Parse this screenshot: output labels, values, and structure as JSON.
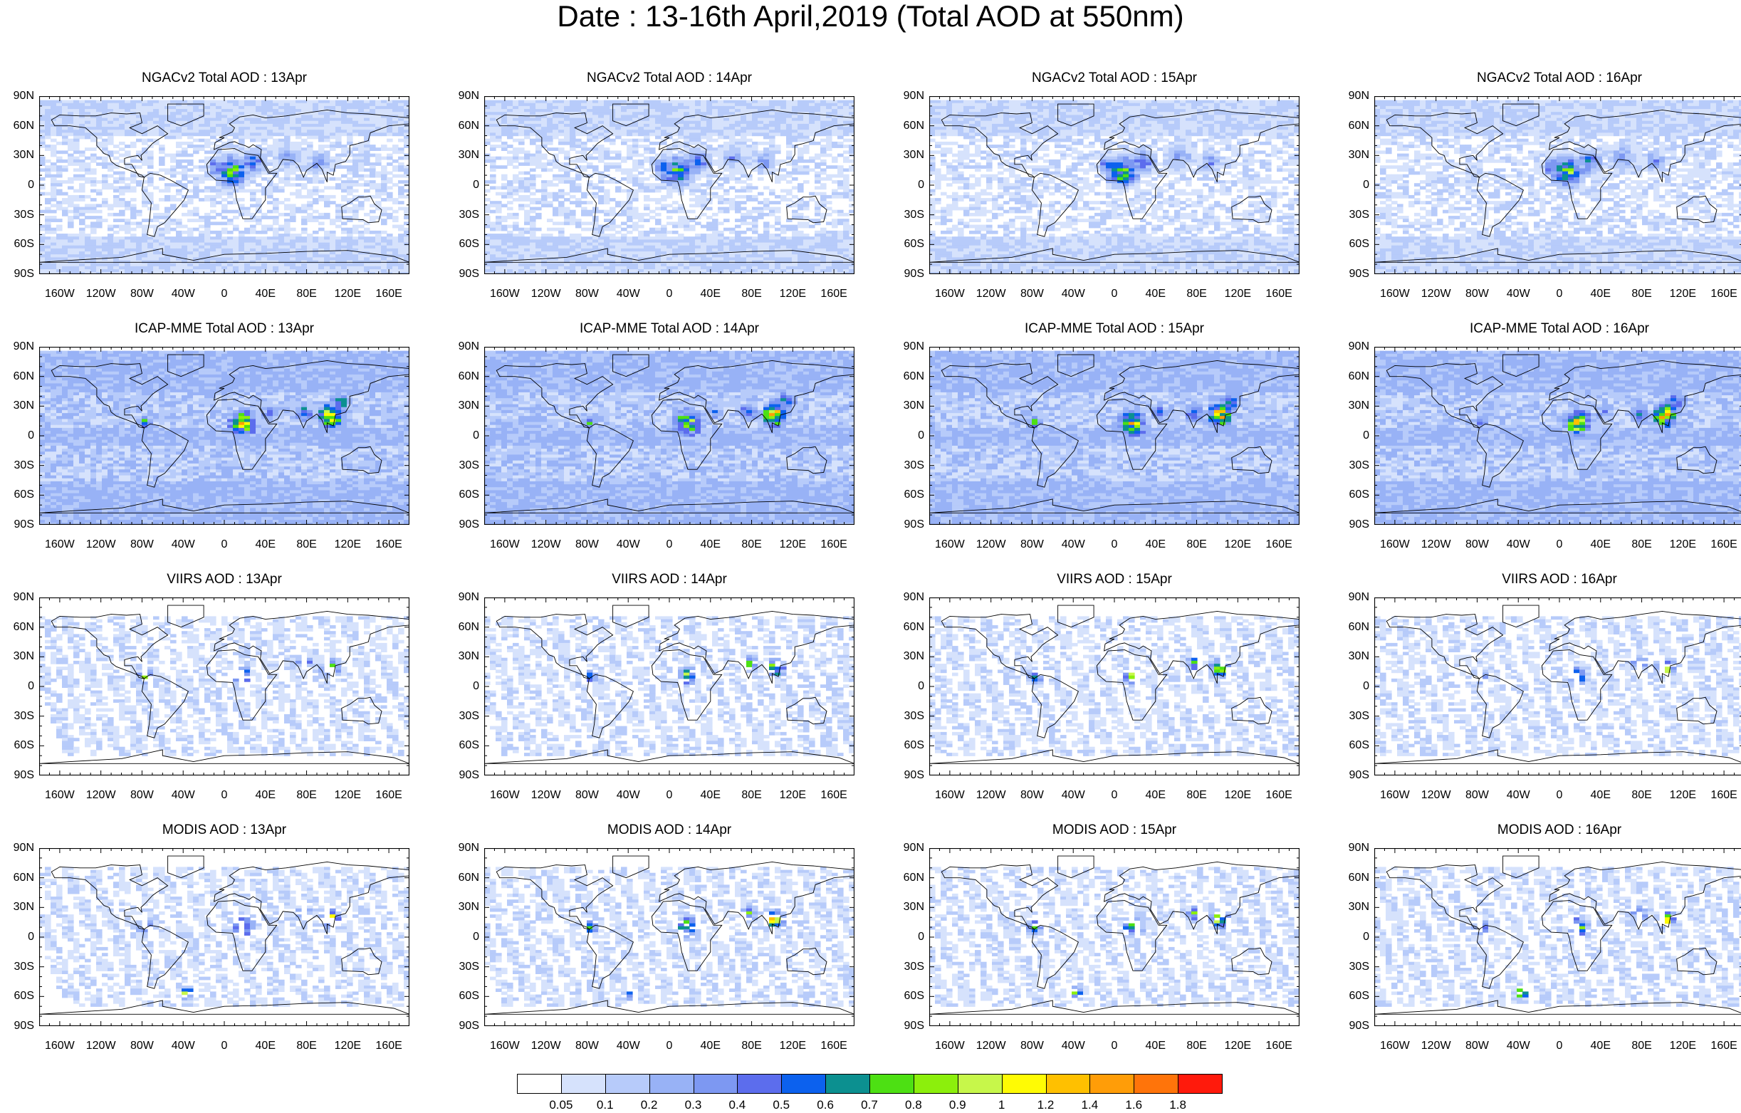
{
  "title": "Date : 13-16th April,2019 (Total AOD at 550nm)",
  "panels": [
    {
      "title": "NGACv2 Total AOD : 13Apr",
      "model": "ngac",
      "seed": 11
    },
    {
      "title": "NGACv2 Total AOD : 14Apr",
      "model": "ngac",
      "seed": 12
    },
    {
      "title": "NGACv2 Total AOD : 15Apr",
      "model": "ngac",
      "seed": 13
    },
    {
      "title": "NGACv2 Total AOD : 16Apr",
      "model": "ngac",
      "seed": 14
    },
    {
      "title": "ICAP-MME Total AOD : 13Apr",
      "model": "icap",
      "seed": 21
    },
    {
      "title": "ICAP-MME Total AOD : 14Apr",
      "model": "icap",
      "seed": 22
    },
    {
      "title": "ICAP-MME Total AOD : 15Apr",
      "model": "icap",
      "seed": 23
    },
    {
      "title": "ICAP-MME Total AOD : 16Apr",
      "model": "icap",
      "seed": 24
    },
    {
      "title": "VIIRS AOD : 13Apr",
      "model": "viirs",
      "seed": 31
    },
    {
      "title": "VIIRS AOD : 14Apr",
      "model": "viirs",
      "seed": 32
    },
    {
      "title": "VIIRS AOD : 15Apr",
      "model": "viirs",
      "seed": 33
    },
    {
      "title": "VIIRS AOD : 16Apr",
      "model": "viirs",
      "seed": 34
    },
    {
      "title": "MODIS AOD : 13Apr",
      "model": "modis",
      "seed": 41
    },
    {
      "title": "MODIS AOD : 14Apr",
      "model": "modis",
      "seed": 42
    },
    {
      "title": "MODIS AOD : 15Apr",
      "model": "modis",
      "seed": 43
    },
    {
      "title": "MODIS AOD : 16Apr",
      "model": "modis",
      "seed": 44
    }
  ],
  "y_ticks": [
    "90N",
    "60N",
    "30N",
    "0",
    "30S",
    "60S",
    "90S"
  ],
  "x_ticks": [
    "160W",
    "120W",
    "80W",
    "40W",
    "0",
    "40E",
    "80E",
    "120E",
    "160E"
  ],
  "x_tick_lons": [
    -160,
    -120,
    -80,
    -40,
    0,
    40,
    80,
    120,
    160
  ],
  "colorbar": {
    "labels": [
      "0.05",
      "0.1",
      "0.2",
      "0.3",
      "0.4",
      "0.5",
      "0.6",
      "0.7",
      "0.8",
      "0.9",
      "1",
      "1.2",
      "1.4",
      "1.6",
      "1.8"
    ],
    "colors": [
      "#ffffff",
      "#d6e2fc",
      "#b7cbfa",
      "#98b2f6",
      "#7d98f2",
      "#5c6ded",
      "#0c61ee",
      "#0c9090",
      "#4de013",
      "#8cef0c",
      "#c7f74a",
      "#fffb04",
      "#ffc000",
      "#ff9d08",
      "#ff740a",
      "#ff1a0c"
    ]
  }
}
